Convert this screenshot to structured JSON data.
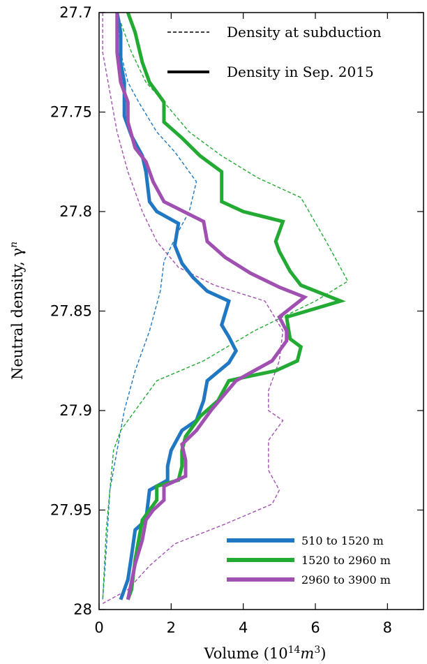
{
  "chart_data": {
    "type": "line",
    "xlabel": "Volume (10",
    "xlabel_sup1": "14",
    "xlabel_mid": "m",
    "xlabel_sup2": "3",
    "xlabel_end": ")",
    "ylabel": "Neutral density, γ",
    "ylabel_sup": "n",
    "xlim": [
      0,
      9
    ],
    "ylim": [
      28,
      27.7
    ],
    "x_ticks": [
      0,
      2,
      4,
      6,
      8
    ],
    "x_tick_labels": [
      "0",
      "2",
      "4",
      "6",
      "8"
    ],
    "y_ticks": [
      27.7,
      27.75,
      27.8,
      27.85,
      27.9,
      27.95,
      28
    ],
    "y_tick_labels": [
      "27.7",
      "27.75",
      "27.8",
      "27.85",
      "27.9",
      "27.95",
      "28"
    ],
    "style_legend": [
      {
        "label": "Density at subduction",
        "style": "dashed"
      },
      {
        "label": "Density in Sep. 2015",
        "style": "solid"
      }
    ],
    "legend_position": "bottom-right",
    "series": [
      {
        "name": "510 to 1520 m",
        "color": "#1f78c1",
        "style": "solid",
        "points": [
          [
            0.5,
            27.7
          ],
          [
            0.6,
            27.71
          ],
          [
            0.6,
            27.725
          ],
          [
            0.7,
            27.735
          ],
          [
            0.7,
            27.745
          ],
          [
            0.7,
            27.752
          ],
          [
            0.9,
            27.762
          ],
          [
            1.2,
            27.772
          ],
          [
            1.3,
            27.78
          ],
          [
            1.4,
            27.795
          ],
          [
            1.6,
            27.8
          ],
          [
            2.2,
            27.806
          ],
          [
            2.1,
            27.817
          ],
          [
            2.3,
            27.826
          ],
          [
            2.6,
            27.833
          ],
          [
            3.0,
            27.84
          ],
          [
            3.6,
            27.845
          ],
          [
            3.4,
            27.857
          ],
          [
            3.6,
            27.863
          ],
          [
            3.8,
            27.87
          ],
          [
            3.6,
            27.876
          ],
          [
            3.0,
            27.885
          ],
          [
            2.9,
            27.895
          ],
          [
            2.7,
            27.905
          ],
          [
            2.3,
            27.91
          ],
          [
            2.0,
            27.92
          ],
          [
            1.9,
            27.928
          ],
          [
            1.9,
            27.935
          ],
          [
            1.4,
            27.94
          ],
          [
            1.4,
            27.94
          ],
          [
            1.3,
            27.955
          ],
          [
            1.0,
            27.96
          ],
          [
            0.9,
            27.973
          ],
          [
            0.8,
            27.985
          ],
          [
            0.6,
            27.995
          ]
        ]
      },
      {
        "name": "1520 to 2960 m",
        "color": "#22aa33",
        "style": "solid",
        "points": [
          [
            0.8,
            27.7
          ],
          [
            1.0,
            27.71
          ],
          [
            1.2,
            27.725
          ],
          [
            1.4,
            27.735
          ],
          [
            1.6,
            27.74
          ],
          [
            1.8,
            27.745
          ],
          [
            1.8,
            27.755
          ],
          [
            2.3,
            27.763
          ],
          [
            2.8,
            27.772
          ],
          [
            3.4,
            27.78
          ],
          [
            3.4,
            27.795
          ],
          [
            4.0,
            27.8
          ],
          [
            5.1,
            27.805
          ],
          [
            4.9,
            27.815
          ],
          [
            5.0,
            27.82
          ],
          [
            5.3,
            27.83
          ],
          [
            5.6,
            27.837
          ],
          [
            6.7,
            27.845
          ],
          [
            5.2,
            27.853
          ],
          [
            5.3,
            27.864
          ],
          [
            5.6,
            27.868
          ],
          [
            5.5,
            27.875
          ],
          [
            4.9,
            27.88
          ],
          [
            4.1,
            27.883
          ],
          [
            3.6,
            27.885
          ],
          [
            3.3,
            27.895
          ],
          [
            2.8,
            27.903
          ],
          [
            2.4,
            27.913
          ],
          [
            2.3,
            27.92
          ],
          [
            2.3,
            27.928
          ],
          [
            2.2,
            27.935
          ],
          [
            1.6,
            27.938
          ],
          [
            1.6,
            27.945
          ],
          [
            1.2,
            27.955
          ],
          [
            1.1,
            27.965
          ],
          [
            1.0,
            27.975
          ],
          [
            0.9,
            27.99
          ],
          [
            0.8,
            27.995
          ]
        ]
      },
      {
        "name": "2960 to 3900 m",
        "color": "#a050b0",
        "style": "solid",
        "points": [
          [
            0.5,
            27.7
          ],
          [
            0.5,
            27.72
          ],
          [
            0.6,
            27.735
          ],
          [
            0.8,
            27.745
          ],
          [
            0.8,
            27.755
          ],
          [
            1.0,
            27.768
          ],
          [
            1.3,
            27.775
          ],
          [
            1.5,
            27.785
          ],
          [
            1.8,
            27.795
          ],
          [
            2.9,
            27.805
          ],
          [
            3.0,
            27.815
          ],
          [
            3.5,
            27.823
          ],
          [
            4.2,
            27.831
          ],
          [
            5.0,
            27.838
          ],
          [
            5.7,
            27.843
          ],
          [
            5.0,
            27.853
          ],
          [
            5.2,
            27.86
          ],
          [
            5.2,
            27.865
          ],
          [
            4.8,
            27.875
          ],
          [
            4.3,
            27.88
          ],
          [
            3.8,
            27.885
          ],
          [
            3.1,
            27.9
          ],
          [
            2.7,
            27.91
          ],
          [
            2.3,
            27.917
          ],
          [
            2.4,
            27.925
          ],
          [
            2.4,
            27.933
          ],
          [
            1.8,
            27.938
          ],
          [
            1.8,
            27.945
          ],
          [
            1.5,
            27.95
          ],
          [
            1.3,
            27.955
          ],
          [
            1.2,
            27.965
          ],
          [
            1.0,
            27.977
          ],
          [
            0.8,
            27.995
          ]
        ]
      },
      {
        "name": "510 to 1520 m",
        "color": "#1f78c1",
        "style": "dashed",
        "points": [
          [
            0.5,
            27.7
          ],
          [
            0.6,
            27.72
          ],
          [
            0.8,
            27.735
          ],
          [
            1.1,
            27.745
          ],
          [
            1.6,
            27.76
          ],
          [
            2.1,
            27.77
          ],
          [
            2.7,
            27.785
          ],
          [
            2.5,
            27.8
          ],
          [
            2.2,
            27.81
          ],
          [
            1.8,
            27.825
          ],
          [
            1.7,
            27.84
          ],
          [
            1.4,
            27.86
          ],
          [
            1.0,
            27.88
          ],
          [
            0.7,
            27.9
          ],
          [
            0.5,
            27.92
          ],
          [
            0.3,
            27.94
          ],
          [
            0.2,
            27.97
          ],
          [
            0.1,
            27.995
          ]
        ]
      },
      {
        "name": "1520 to 2960 m",
        "color": "#22aa33",
        "style": "dashed",
        "points": [
          [
            0.5,
            27.7
          ],
          [
            0.9,
            27.72
          ],
          [
            1.3,
            27.735
          ],
          [
            1.8,
            27.745
          ],
          [
            2.5,
            27.76
          ],
          [
            3.4,
            27.772
          ],
          [
            4.4,
            27.783
          ],
          [
            5.6,
            27.793
          ],
          [
            6.3,
            27.815
          ],
          [
            6.6,
            27.825
          ],
          [
            6.9,
            27.835
          ],
          [
            6.0,
            27.845
          ],
          [
            4.3,
            27.86
          ],
          [
            2.9,
            27.875
          ],
          [
            1.6,
            27.885
          ],
          [
            1.0,
            27.9
          ],
          [
            0.6,
            27.91
          ],
          [
            0.4,
            27.92
          ],
          [
            0.3,
            27.94
          ],
          [
            0.2,
            27.96
          ],
          [
            0.1,
            27.995
          ]
        ]
      },
      {
        "name": "2960 to 3900 m",
        "color": "#a050b0",
        "style": "dashed",
        "points": [
          [
            0.1,
            27.7
          ],
          [
            0.1,
            27.72
          ],
          [
            0.3,
            27.74
          ],
          [
            0.5,
            27.76
          ],
          [
            0.8,
            27.78
          ],
          [
            1.2,
            27.8
          ],
          [
            1.6,
            27.815
          ],
          [
            2.2,
            27.828
          ],
          [
            3.2,
            27.837
          ],
          [
            4.6,
            27.845
          ],
          [
            5.1,
            27.86
          ],
          [
            5.0,
            27.875
          ],
          [
            4.7,
            27.89
          ],
          [
            4.7,
            27.9
          ],
          [
            5.1,
            27.905
          ],
          [
            4.7,
            27.915
          ],
          [
            4.7,
            27.93
          ],
          [
            5.0,
            27.94
          ],
          [
            4.8,
            27.947
          ],
          [
            3.5,
            27.957
          ],
          [
            2.1,
            27.967
          ],
          [
            1.4,
            27.978
          ],
          [
            0.8,
            27.99
          ],
          [
            0.1,
            27.997
          ]
        ]
      }
    ]
  }
}
